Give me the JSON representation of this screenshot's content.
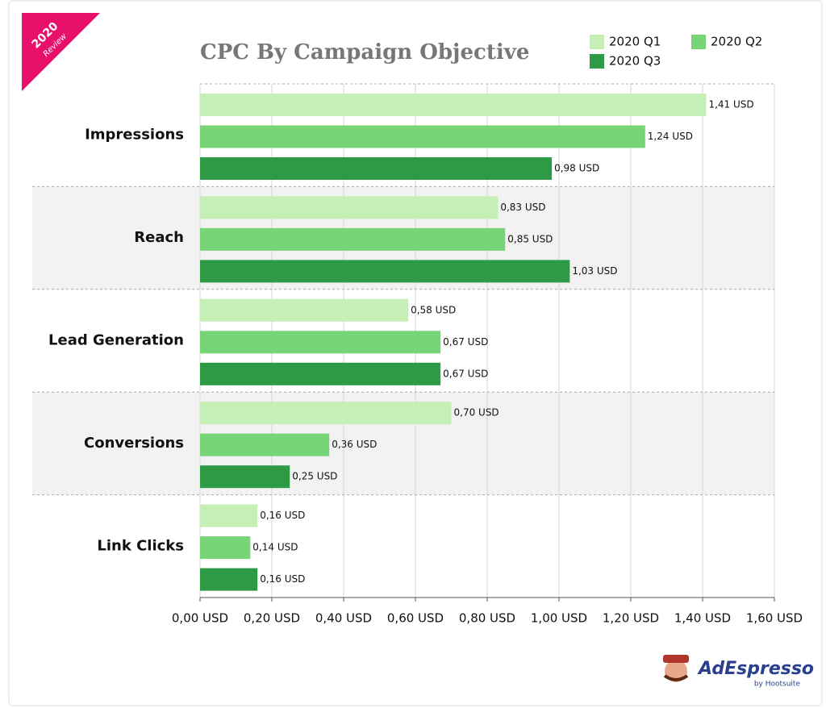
{
  "badge": {
    "year": "2020",
    "text": "Review"
  },
  "logo": {
    "name": "AdEspresso",
    "by": "by Hootsuite"
  },
  "chart_data": {
    "type": "hbar",
    "title": "CPC By Campaign Objective",
    "categories": [
      "Impressions",
      "Reach",
      "Lead Generation",
      "Conversions",
      "Link Clicks"
    ],
    "series": [
      {
        "name": "2020 Q1",
        "color": "#c5efb5",
        "values": [
          1.41,
          0.83,
          0.58,
          0.7,
          0.16
        ],
        "value_labels": [
          "1,41 USD",
          "0,83 USD",
          "0,58 USD",
          "0,70 USD",
          "0,16 USD"
        ]
      },
      {
        "name": "2020 Q2",
        "color": "#77d477",
        "values": [
          1.24,
          0.85,
          0.67,
          0.36,
          0.14
        ],
        "value_labels": [
          "1,24 USD",
          "0,85 USD",
          "0,67 USD",
          "0,36 USD",
          "0,14 USD"
        ]
      },
      {
        "name": "2020 Q3",
        "color": "#2e9a45",
        "values": [
          0.98,
          1.03,
          0.67,
          0.25,
          0.16
        ],
        "value_labels": [
          "0,98 USD",
          "1,03 USD",
          "0,67 USD",
          "0,25 USD",
          "0,16 USD"
        ]
      }
    ],
    "xlim": [
      0,
      1.6
    ],
    "xticks": [
      {
        "value": 0,
        "label": "0,00 USD"
      },
      {
        "value": 0.2,
        "label": "0,20 USD"
      },
      {
        "value": 0.4,
        "label": "0,40 USD"
      },
      {
        "value": 0.6,
        "label": "0,60 USD"
      },
      {
        "value": 0.8,
        "label": "0,80 USD"
      },
      {
        "value": 1.0,
        "label": "1,00 USD"
      },
      {
        "value": 1.2,
        "label": "1,20 USD"
      },
      {
        "value": 1.4,
        "label": "1,40 USD"
      },
      {
        "value": 1.6,
        "label": "1,60 USD"
      }
    ],
    "grid": true,
    "legend": "top-right"
  }
}
